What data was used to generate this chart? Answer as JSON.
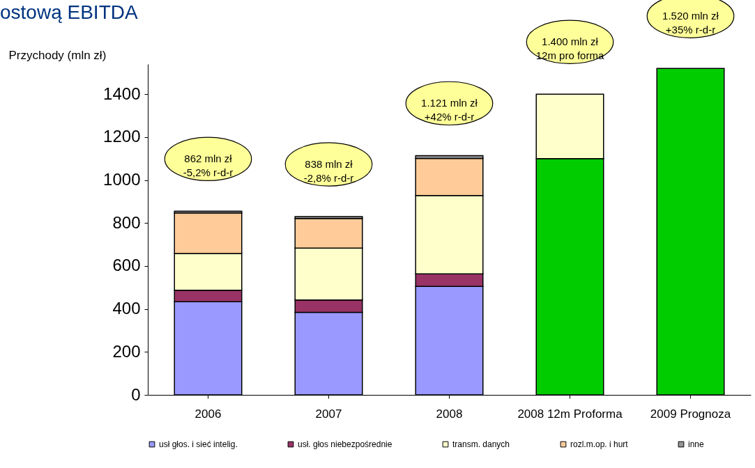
{
  "chart_data": {
    "type": "bar",
    "stacked": true,
    "title": "ostową EBITDA",
    "ylabel": "Przychody (mln zł)",
    "categories": [
      "2006",
      "2007",
      "2008",
      "2008 12m Proforma",
      "2009 Prognoza"
    ],
    "series": [
      {
        "color": "#00cc00",
        "values": [
          null,
          null,
          null,
          1100,
          1520
        ]
      },
      {
        "name": "usł głos. i sieć intelig.",
        "color": "#9999ff",
        "values": [
          434,
          384,
          505,
          null,
          null
        ]
      },
      {
        "name": "usł. głos niebezpośrednie",
        "color": "#993366",
        "values": [
          53,
          58,
          58,
          null,
          null
        ]
      },
      {
        "name": "transm. danych",
        "color": "#ffffcc",
        "values": [
          171,
          241,
          365,
          300,
          null
        ]
      },
      {
        "name": "rozl.m.op. i hurt",
        "color": "#ffcc99",
        "values": [
          189,
          138,
          173,
          null,
          null
        ]
      },
      {
        "name": "inne",
        "color": "#969696",
        "values": [
          8,
          9,
          13,
          null,
          null
        ]
      }
    ],
    "annotations": [
      "862 mln zł\n-5,2% r-d-r",
      "838 mln zł\n-2,8% r-d-r",
      "1.121 mln zł\n+42% r-d-r",
      "1.400 mln zł\n12m pro forma",
      "1.520 mln zł\n+35% r-d-r"
    ],
    "ylim": [
      0,
      1540
    ],
    "yticks": [
      0,
      200,
      400,
      600,
      800,
      1000,
      1200,
      1400
    ],
    "grid": false,
    "legend": "bottom"
  }
}
